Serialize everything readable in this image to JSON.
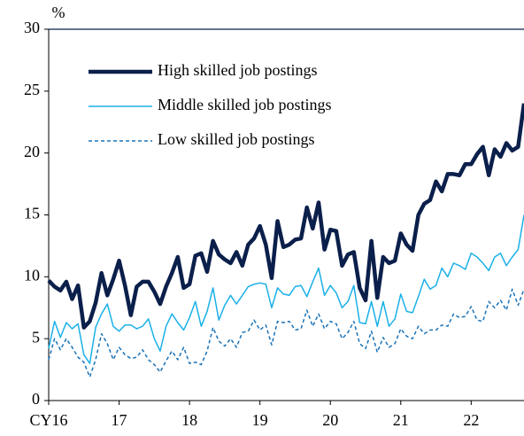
{
  "chart_data": {
    "type": "line",
    "y_unit": "%",
    "categories": [
      "CY16",
      null,
      null,
      null,
      null,
      null,
      null,
      null,
      null,
      null,
      null,
      null,
      "17",
      null,
      null,
      null,
      null,
      null,
      null,
      null,
      null,
      null,
      null,
      null,
      "18",
      null,
      null,
      null,
      null,
      null,
      null,
      null,
      null,
      null,
      null,
      null,
      "19",
      null,
      null,
      null,
      null,
      null,
      null,
      null,
      null,
      null,
      null,
      null,
      "20",
      null,
      null,
      null,
      null,
      null,
      null,
      null,
      null,
      null,
      null,
      null,
      "21",
      null,
      null,
      null,
      null,
      null,
      null,
      null,
      null,
      null,
      null,
      null,
      "22",
      null,
      null,
      null,
      null,
      null,
      null,
      null,
      null,
      null
    ],
    "series": [
      {
        "name": "High skilled job postings",
        "color": "#0b1f4b",
        "width": 4.5,
        "dash": "none",
        "values": [
          9.7,
          9.2,
          8.9,
          9.6,
          8.2,
          9.3,
          5.9,
          6.4,
          7.9,
          10.3,
          8.5,
          9.8,
          11.3,
          9.3,
          6.9,
          9.2,
          9.6,
          9.6,
          8.8,
          7.8,
          9.2,
          10.3,
          11.6,
          9.1,
          9.4,
          11.7,
          11.9,
          10.4,
          12.9,
          11.8,
          11.4,
          11.1,
          12.0,
          10.9,
          12.6,
          13.1,
          14.1,
          12.6,
          9.9,
          14.5,
          12.4,
          12.6,
          13.0,
          13.1,
          15.6,
          13.9,
          16.0,
          12.2,
          13.8,
          13.7,
          10.9,
          11.8,
          12.0,
          9.1,
          8.1,
          12.9,
          8.3,
          11.6,
          11.1,
          11.3,
          13.5,
          12.6,
          12.1,
          15.0,
          15.9,
          16.2,
          17.7,
          16.9,
          18.3,
          18.3,
          18.2,
          19.1,
          19.1,
          19.9,
          20.5,
          18.2,
          20.3,
          19.7,
          20.8,
          20.2,
          20.5,
          24.0
        ]
      },
      {
        "name": "Middle skilled job postings",
        "color": "#1ab0e8",
        "width": 1.5,
        "dash": "none",
        "values": [
          4.2,
          6.4,
          5.1,
          6.3,
          5.8,
          6.2,
          3.7,
          3.0,
          5.9,
          7.0,
          7.8,
          6.0,
          5.6,
          6.1,
          6.1,
          5.8,
          6.0,
          6.6,
          5.0,
          4.0,
          6.0,
          7.0,
          6.3,
          5.7,
          6.7,
          8.0,
          6.0,
          7.2,
          9.1,
          6.5,
          7.7,
          8.5,
          7.8,
          8.5,
          9.2,
          9.4,
          9.5,
          9.4,
          7.5,
          9.1,
          8.6,
          8.5,
          9.2,
          9.3,
          8.4,
          9.6,
          10.7,
          8.5,
          9.3,
          8.7,
          7.5,
          8.0,
          9.3,
          6.3,
          6.2,
          8.0,
          6.0,
          8.0,
          6.0,
          6.6,
          8.6,
          7.2,
          7.1,
          8.4,
          9.8,
          9.0,
          9.3,
          10.7,
          10.0,
          11.1,
          10.9,
          10.6,
          11.9,
          11.6,
          11.1,
          10.5,
          11.6,
          11.9,
          10.9,
          11.6,
          12.2,
          15.0
        ]
      },
      {
        "name": "Low skilled job postings",
        "color": "#1a73b8",
        "width": 1.5,
        "dash": "4 3",
        "values": [
          3.3,
          5.0,
          4.1,
          5.0,
          4.3,
          3.5,
          3.1,
          1.9,
          3.3,
          5.4,
          4.6,
          3.3,
          4.3,
          3.7,
          3.4,
          3.5,
          4.1,
          3.3,
          2.9,
          2.3,
          3.2,
          4.0,
          3.3,
          4.3,
          3.0,
          3.1,
          2.9,
          4.0,
          5.9,
          4.8,
          4.4,
          5.0,
          4.3,
          5.5,
          5.6,
          6.5,
          5.7,
          6.1,
          4.5,
          6.4,
          6.3,
          6.4,
          5.7,
          5.8,
          7.3,
          6.0,
          7.0,
          5.8,
          6.4,
          6.2,
          5.0,
          5.5,
          6.4,
          4.6,
          4.2,
          5.6,
          3.9,
          5.1,
          4.3,
          4.6,
          5.8,
          5.2,
          5.0,
          6.0,
          5.4,
          5.7,
          5.7,
          6.1,
          6.0,
          7.0,
          6.7,
          6.8,
          7.6,
          6.5,
          6.4,
          8.0,
          7.5,
          8.1,
          7.3,
          9.0,
          7.7,
          9.0
        ]
      }
    ],
    "ylim": [
      0,
      30
    ],
    "yticks": [
      0,
      5,
      10,
      15,
      20,
      25,
      30
    ],
    "grid": false,
    "legend": "upper left"
  }
}
